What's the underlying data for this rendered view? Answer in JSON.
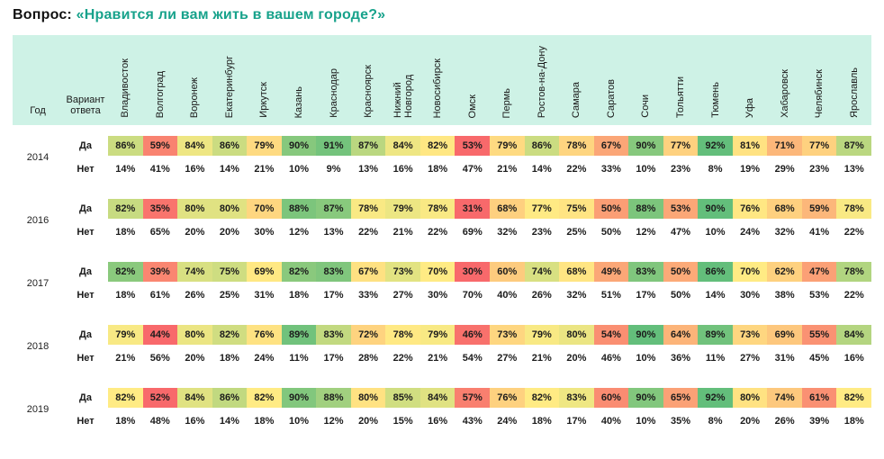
{
  "title": {
    "prefix": "Вопрос:",
    "question": "«Нравится ли вам жить в вашем городе?»"
  },
  "header": {
    "year_label": "Год",
    "answer_label": "Вариант ответа"
  },
  "answers": {
    "yes": "Да",
    "no": "Нет"
  },
  "colors": {
    "accent_teal": "#17A28B",
    "header_bg": "#CEF2E6",
    "scale_red": "#F8696B",
    "scale_yellow": "#FFEB84",
    "scale_green": "#63BE7B"
  },
  "chart_data": {
    "type": "heatmap",
    "title": "Вопрос: «Нравится ли вам жить в вашем городе?»",
    "unit": "%",
    "legend": "Доля ответов «Да» окрашена по шкале красный–жёлтый–зелёный (мин–медиана–макс в пределах года); строки «Нет» без заливки",
    "columns": [
      "Владивосток",
      "Волгоград",
      "Воронеж",
      "Екатеринбург",
      "Иркутск",
      "Казань",
      "Краснодар",
      "Красноярск",
      "Нижний Новгород",
      "Новосибирск",
      "Омск",
      "Пермь",
      "Ростов-на-Дону",
      "Самара",
      "Саратов",
      "Сочи",
      "Тольятти",
      "Тюмень",
      "Уфа",
      "Хабаровск",
      "Челябинск",
      "Ярославль"
    ],
    "rows": [
      {
        "year": "2014",
        "yes": [
          86,
          59,
          84,
          86,
          79,
          90,
          91,
          87,
          84,
          82,
          53,
          79,
          86,
          78,
          67,
          90,
          77,
          92,
          81,
          71,
          77,
          87
        ],
        "no": [
          14,
          41,
          16,
          14,
          21,
          10,
          9,
          13,
          16,
          18,
          47,
          21,
          14,
          22,
          33,
          10,
          23,
          8,
          19,
          29,
          23,
          13
        ]
      },
      {
        "year": "2016",
        "yes": [
          82,
          35,
          80,
          80,
          70,
          88,
          87,
          78,
          79,
          78,
          31,
          68,
          77,
          75,
          50,
          88,
          53,
          90,
          76,
          68,
          59,
          78
        ],
        "no": [
          18,
          65,
          20,
          20,
          30,
          12,
          13,
          22,
          21,
          22,
          69,
          32,
          23,
          25,
          50,
          12,
          47,
          10,
          24,
          32,
          41,
          22
        ]
      },
      {
        "year": "2017",
        "yes": [
          82,
          39,
          74,
          75,
          69,
          82,
          83,
          67,
          73,
          70,
          30,
          60,
          74,
          68,
          49,
          83,
          50,
          86,
          70,
          62,
          47,
          78
        ],
        "no": [
          18,
          61,
          26,
          25,
          31,
          18,
          17,
          33,
          27,
          30,
          70,
          40,
          26,
          32,
          51,
          17,
          50,
          14,
          30,
          38,
          53,
          22
        ]
      },
      {
        "year": "2018",
        "yes": [
          79,
          44,
          80,
          82,
          76,
          89,
          83,
          72,
          78,
          79,
          46,
          73,
          79,
          80,
          54,
          90,
          64,
          89,
          73,
          69,
          55,
          84
        ],
        "no": [
          21,
          56,
          20,
          18,
          24,
          11,
          17,
          28,
          22,
          21,
          54,
          27,
          21,
          20,
          46,
          10,
          36,
          11,
          27,
          31,
          45,
          16
        ]
      },
      {
        "year": "2019",
        "yes": [
          82,
          52,
          84,
          86,
          82,
          90,
          88,
          80,
          85,
          84,
          57,
          76,
          82,
          83,
          60,
          90,
          65,
          92,
          80,
          74,
          61,
          82
        ],
        "no": [
          18,
          48,
          16,
          14,
          18,
          10,
          12,
          20,
          15,
          16,
          43,
          24,
          18,
          17,
          40,
          10,
          35,
          8,
          20,
          26,
          39,
          18
        ]
      }
    ],
    "color_scale": {
      "type": "3-color",
      "min_color": "#F8696B",
      "mid_color": "#FFEB84",
      "max_color": "#63BE7B",
      "applies_to": "yes",
      "midpoint": "per-row median"
    }
  }
}
